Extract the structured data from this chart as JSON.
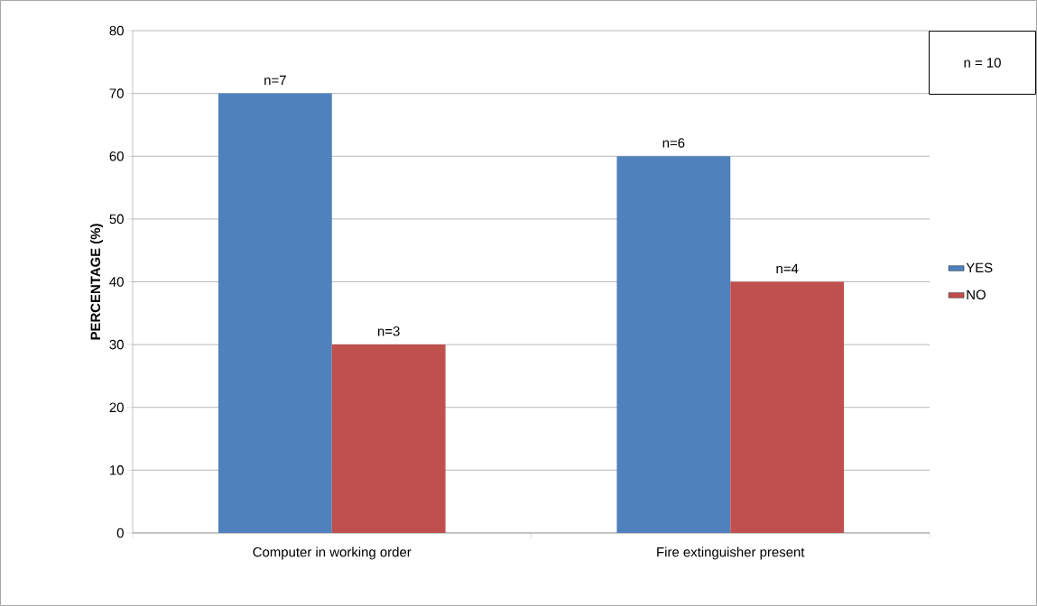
{
  "chart_data": {
    "type": "bar",
    "ylabel": "PERCENTAGE (%)",
    "categories": [
      "Computer in working order",
      "Fire extinguisher present"
    ],
    "series": [
      {
        "name": "YES",
        "color": "#4f81bd",
        "values": [
          70,
          60
        ]
      },
      {
        "name": "NO",
        "color": "#c0504d",
        "values": [
          30,
          40
        ]
      }
    ],
    "ylim": [
      0,
      80
    ],
    "yticks": [
      0,
      10,
      20,
      30,
      40,
      50,
      60,
      70,
      80
    ],
    "grid": "y",
    "legend": "right",
    "annotations": [
      "n = 10",
      "n=7",
      "n=6",
      "n=3",
      "n=4"
    ]
  }
}
